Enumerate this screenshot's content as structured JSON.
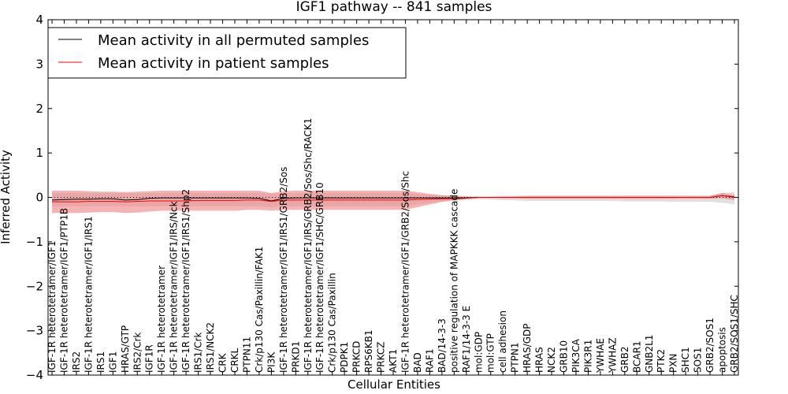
{
  "chart_data": {
    "type": "line",
    "title": "IGF1 pathway -- 841 samples",
    "xlabel": "Cellular Entities",
    "ylabel": "Inferred Activity",
    "ylim": [
      -4,
      4
    ],
    "yticks": [
      -4,
      -3,
      -2,
      -1,
      0,
      1,
      2,
      3,
      4
    ],
    "ytick_labels": [
      "−4",
      "−3",
      "−2",
      "−1",
      "0",
      "1",
      "2",
      "3",
      "4"
    ],
    "legend_position": "upper-left",
    "categories": [
      "IGF-1R heterotetramer/IGF1",
      "IGF-1R heterotetramer/IGF1/PTP1B",
      "IRS2",
      "IGF-1R heterotetramer/IGF1/IRS1",
      "IRS1",
      "IGF1",
      "HRAS/GTP",
      "IRS2/Crk",
      "IGF1R",
      "IGF-1R heterotetramer",
      "IGF-1R heterotetramer/IGF1/IRS/Nck",
      "IGF-1R heterotetramer/IGF1/IRS1/Shp2",
      "IRS1/Crk",
      "IRS1/NCK2",
      "CRK",
      "CRKL",
      "PTPN11",
      "Crk/p130 Cas/Paxillin/FAK1",
      "PI3K",
      "IGF-1R heterotetramer/IGF1/IRS1/GRB2/Sos",
      "PRKD1",
      "IGF-1R heterotetramer/IGF1/IRS/GRB2/Sos/Shc/RACK1",
      "IGF-1R heterotetramer/IGF1/SHC/GRB10",
      "Crk/p130 Cas/Paxillin",
      "PDPK1",
      "PRKCD",
      "RPS6KB1",
      "PRKCZ",
      "AKT1",
      "IGF-1R heterotetramer/IGF1/GRB2/Sos/Shc",
      "BAD",
      "RAF1",
      "BAD/14-3-3",
      "positive regulation of MAPKKK cascade",
      "RAF1/14-3-3 E",
      "mol:GDP",
      "mol:GTP",
      "cell adhesion",
      "PTPN1",
      "HRAS/GDP",
      "HRAS",
      "NCK2",
      "GRB10",
      "PIK3CA",
      "PIK3R1",
      "YWHAE",
      "YWHAZ",
      "GRB2",
      "BCAR1",
      "GNB2L1",
      "PTK2",
      "PXN",
      "SHC1",
      "SOS1",
      "GRB2/SOS1",
      "apoptosis",
      "GRB2/SOS1/SHC"
    ],
    "series": [
      {
        "name": "Mean activity in all permuted samples",
        "color": "#000000",
        "band_color": "#bbbbbb",
        "values": [
          -0.06,
          -0.05,
          -0.04,
          -0.04,
          -0.03,
          -0.03,
          -0.06,
          -0.05,
          -0.02,
          -0.01,
          -0.01,
          -0.01,
          -0.01,
          -0.01,
          -0.01,
          -0.01,
          -0.01,
          -0.02,
          -0.08,
          -0.02,
          -0.01,
          -0.01,
          -0.01,
          -0.01,
          -0.01,
          -0.01,
          -0.01,
          -0.01,
          -0.01,
          -0.01,
          -0.01,
          -0.01,
          -0.01,
          -0.01,
          -0.01,
          0.0,
          0.0,
          0.0,
          0.0,
          0.0,
          0.0,
          0.0,
          0.0,
          0.0,
          0.0,
          0.0,
          0.0,
          0.0,
          0.0,
          0.0,
          0.0,
          0.0,
          0.0,
          0.0,
          0.0,
          0.04,
          0.01
        ],
        "lower": [
          -0.2,
          -0.2,
          -0.2,
          -0.2,
          -0.2,
          -0.2,
          -0.2,
          -0.2,
          -0.2,
          -0.2,
          -0.2,
          -0.2,
          -0.2,
          -0.2,
          -0.2,
          -0.2,
          -0.2,
          -0.2,
          -0.22,
          -0.2,
          -0.2,
          -0.2,
          -0.2,
          -0.2,
          -0.2,
          -0.2,
          -0.2,
          -0.2,
          -0.2,
          -0.2,
          -0.15,
          -0.12,
          -0.1,
          -0.08,
          -0.06,
          -0.04,
          -0.05,
          -0.06,
          -0.07,
          -0.08,
          -0.08,
          -0.08,
          -0.08,
          -0.08,
          -0.08,
          -0.08,
          -0.08,
          -0.09,
          -0.09,
          -0.09,
          -0.09,
          -0.1,
          -0.1,
          -0.1,
          -0.1,
          -0.12,
          -0.16
        ],
        "upper": [
          0.1,
          0.1,
          0.1,
          0.1,
          0.1,
          0.1,
          0.1,
          0.1,
          0.1,
          0.1,
          0.1,
          0.1,
          0.1,
          0.1,
          0.1,
          0.1,
          0.1,
          0.1,
          0.08,
          0.1,
          0.1,
          0.1,
          0.1,
          0.1,
          0.1,
          0.1,
          0.1,
          0.1,
          0.1,
          0.1,
          0.08,
          0.06,
          0.05,
          0.04,
          0.03,
          0.03,
          0.03,
          0.04,
          0.04,
          0.05,
          0.05,
          0.05,
          0.05,
          0.05,
          0.05,
          0.05,
          0.05,
          0.05,
          0.05,
          0.05,
          0.05,
          0.05,
          0.05,
          0.05,
          0.05,
          0.1,
          0.12
        ]
      },
      {
        "name": "Mean activity in patient samples",
        "color": "#ff0000",
        "band_color": "#f08080",
        "values": [
          -0.1,
          -0.1,
          -0.1,
          -0.09,
          -0.09,
          -0.09,
          -0.1,
          -0.09,
          -0.08,
          -0.08,
          -0.08,
          -0.08,
          -0.07,
          -0.07,
          -0.07,
          -0.07,
          -0.06,
          -0.06,
          -0.09,
          -0.06,
          -0.06,
          -0.06,
          -0.06,
          -0.06,
          -0.06,
          -0.06,
          -0.06,
          -0.06,
          -0.06,
          -0.06,
          -0.05,
          -0.04,
          -0.03,
          -0.03,
          -0.02,
          0.0,
          0.0,
          0.0,
          0.0,
          0.0,
          0.0,
          0.0,
          0.0,
          0.0,
          0.0,
          0.0,
          0.0,
          0.0,
          0.0,
          0.0,
          0.0,
          0.0,
          0.0,
          0.0,
          0.0,
          0.04,
          0.0
        ],
        "lower": [
          -0.35,
          -0.35,
          -0.35,
          -0.34,
          -0.33,
          -0.33,
          -0.35,
          -0.34,
          -0.32,
          -0.3,
          -0.3,
          -0.3,
          -0.3,
          -0.3,
          -0.3,
          -0.3,
          -0.28,
          -0.28,
          -0.3,
          -0.28,
          -0.28,
          -0.28,
          -0.28,
          -0.28,
          -0.28,
          -0.28,
          -0.28,
          -0.28,
          -0.28,
          -0.28,
          -0.22,
          -0.16,
          -0.1,
          -0.06,
          -0.03,
          -0.01,
          -0.01,
          -0.02,
          -0.02,
          -0.03,
          -0.03,
          -0.03,
          -0.03,
          -0.03,
          -0.03,
          -0.03,
          -0.03,
          -0.03,
          -0.03,
          -0.03,
          -0.03,
          -0.03,
          -0.03,
          -0.03,
          -0.03,
          -0.02,
          -0.06
        ],
        "upper": [
          0.15,
          0.15,
          0.15,
          0.14,
          0.13,
          0.13,
          0.12,
          0.13,
          0.14,
          0.15,
          0.15,
          0.15,
          0.15,
          0.15,
          0.15,
          0.15,
          0.15,
          0.15,
          0.1,
          0.14,
          0.15,
          0.15,
          0.15,
          0.15,
          0.15,
          0.15,
          0.15,
          0.15,
          0.15,
          0.15,
          0.12,
          0.08,
          0.05,
          0.03,
          0.02,
          0.01,
          0.01,
          0.02,
          0.02,
          0.03,
          0.03,
          0.03,
          0.03,
          0.03,
          0.03,
          0.03,
          0.03,
          0.03,
          0.03,
          0.03,
          0.03,
          0.03,
          0.03,
          0.03,
          0.03,
          0.1,
          0.06
        ]
      }
    ]
  }
}
